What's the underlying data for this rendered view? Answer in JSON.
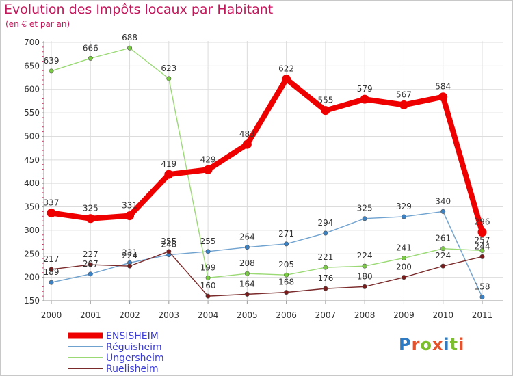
{
  "title": "Evolution des Impôts locaux par Habitant",
  "subtitle": "(en € et par an)",
  "logo": {
    "text": "Proxiti",
    "letter_colors": [
      "#2e7bc4",
      "#e3522a",
      "#7bbf2a",
      "#e3522a",
      "#2e7bc4",
      "#7bbf2a",
      "#e3522a"
    ]
  },
  "chart_data": {
    "type": "line",
    "title": "Evolution des Impôts locaux par Habitant",
    "subtitle": "(en € et par an)",
    "xlabel": "",
    "ylabel": "",
    "x": [
      "2000",
      "2001",
      "2002",
      "2003",
      "2004",
      "2005",
      "2006",
      "2007",
      "2008",
      "2009",
      "2010",
      "2011"
    ],
    "ylim": [
      150,
      700
    ],
    "yticks": [
      "150",
      "200",
      "250",
      "300",
      "350",
      "400",
      "450",
      "500",
      "550",
      "600",
      "650",
      "700"
    ],
    "grid": true,
    "legend_position": "bottom-left",
    "series": [
      {
        "name": "ENSISHEIM",
        "color": "#ee0000",
        "marker": "#ee0000",
        "width": "thick",
        "values": [
          337,
          325,
          331,
          419,
          429,
          483,
          622,
          555,
          579,
          567,
          584,
          296
        ],
        "labels": [
          "337",
          "325",
          "331",
          "419",
          "429",
          "483",
          "622",
          "555",
          "579",
          "567",
          "584",
          "296"
        ]
      },
      {
        "name": "Réguisheim",
        "color": "#6fa2cf",
        "marker": "#3a82c4",
        "width": "thin",
        "values": [
          189,
          207,
          231,
          248,
          255,
          264,
          271,
          294,
          325,
          329,
          340,
          158
        ],
        "labels": [
          "189",
          "207",
          "231",
          "248",
          "255",
          "264",
          "271",
          "294",
          "325",
          "329",
          "340",
          "158"
        ]
      },
      {
        "name": "Ungersheim",
        "color": "#9ad974",
        "marker": "#7acb44",
        "width": "thin",
        "values": [
          639,
          666,
          688,
          623,
          199,
          208,
          205,
          221,
          224,
          241,
          261,
          257
        ],
        "labels": [
          "639",
          "666",
          "688",
          "623",
          "199",
          "208",
          "205",
          "221",
          "224",
          "241",
          "261",
          "257"
        ]
      },
      {
        "name": "Ruelisheim",
        "color": "#7a2a2a",
        "marker": "#7a1a1a",
        "width": "thin",
        "values": [
          217,
          227,
          224,
          255,
          160,
          164,
          168,
          176,
          180,
          200,
          224,
          244
        ],
        "labels": [
          "217",
          "227",
          "224",
          "255",
          "160",
          "164",
          "168",
          "176",
          "180",
          "200",
          "224",
          "244"
        ]
      }
    ]
  }
}
